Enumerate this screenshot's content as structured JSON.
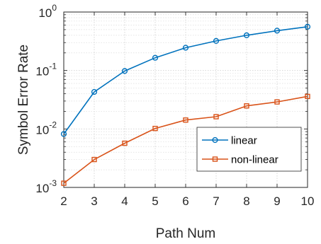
{
  "chart_data": {
    "type": "line",
    "xlabel": "Path Num",
    "ylabel": "Symbol Error Rate",
    "x": [
      2,
      3,
      4,
      5,
      6,
      7,
      8,
      9,
      10
    ],
    "xlim": [
      2,
      10
    ],
    "ylim": [
      0.001,
      1
    ],
    "yscale": "log",
    "grid": true,
    "legend_position": "lower-right",
    "x_ticks": [
      "2",
      "3",
      "4",
      "5",
      "6",
      "7",
      "8",
      "9",
      "10"
    ],
    "y_ticks": [
      {
        "base": "10",
        "exp": "-3"
      },
      {
        "base": "10",
        "exp": "-2"
      },
      {
        "base": "10",
        "exp": "-1"
      },
      {
        "base": "10",
        "exp": "0"
      }
    ],
    "series": [
      {
        "name": "linear",
        "color": "#0072BD",
        "marker": "circle",
        "values": [
          0.0082,
          0.043,
          0.098,
          0.165,
          0.245,
          0.32,
          0.4,
          0.48,
          0.56
        ]
      },
      {
        "name": "non-linear",
        "color": "#D95319",
        "marker": "square",
        "values": [
          0.00118,
          0.003,
          0.0057,
          0.0102,
          0.0142,
          0.0162,
          0.0248,
          0.029,
          0.036
        ]
      }
    ]
  }
}
